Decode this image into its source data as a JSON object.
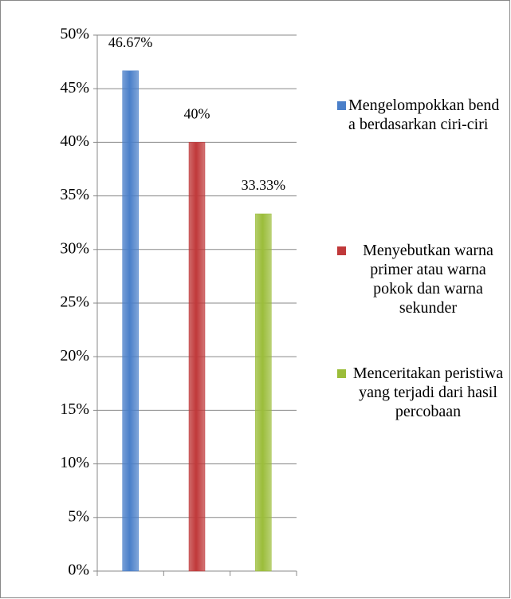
{
  "chart_data": {
    "type": "bar",
    "categories": [
      null,
      null,
      null
    ],
    "series": [
      {
        "name": "Mengelompokkan benda berdasarkan ciri-ciri",
        "color": "#4a7fc9",
        "values": [
          46.67,
          null,
          null
        ],
        "value_labels": [
          "46.67%",
          null,
          null
        ]
      },
      {
        "name": "Menyebutkan warna primer atau warna pokok dan warna sekunder",
        "color": "#c0393a",
        "values": [
          null,
          40,
          null
        ],
        "value_labels": [
          null,
          "40%",
          null
        ]
      },
      {
        "name": "Menceritakan peristiwa yang terjadi dari hasil percobaan",
        "color": "#9bbd3a",
        "values": [
          null,
          null,
          33.33
        ],
        "value_labels": [
          null,
          null,
          "33.33%"
        ]
      }
    ],
    "ylim": [
      0,
      50
    ],
    "yticks": [
      {
        "value": 0,
        "label": "0%"
      },
      {
        "value": 5,
        "label": "5%"
      },
      {
        "value": 10,
        "label": "10%"
      },
      {
        "value": 15,
        "label": "15%"
      },
      {
        "value": 20,
        "label": "20%"
      },
      {
        "value": 25,
        "label": "25%"
      },
      {
        "value": 30,
        "label": "30%"
      },
      {
        "value": 35,
        "label": "35%"
      },
      {
        "value": 40,
        "label": "40%"
      },
      {
        "value": 45,
        "label": "45%"
      },
      {
        "value": 50,
        "label": "50%"
      }
    ],
    "grid": true,
    "legend": "right"
  }
}
